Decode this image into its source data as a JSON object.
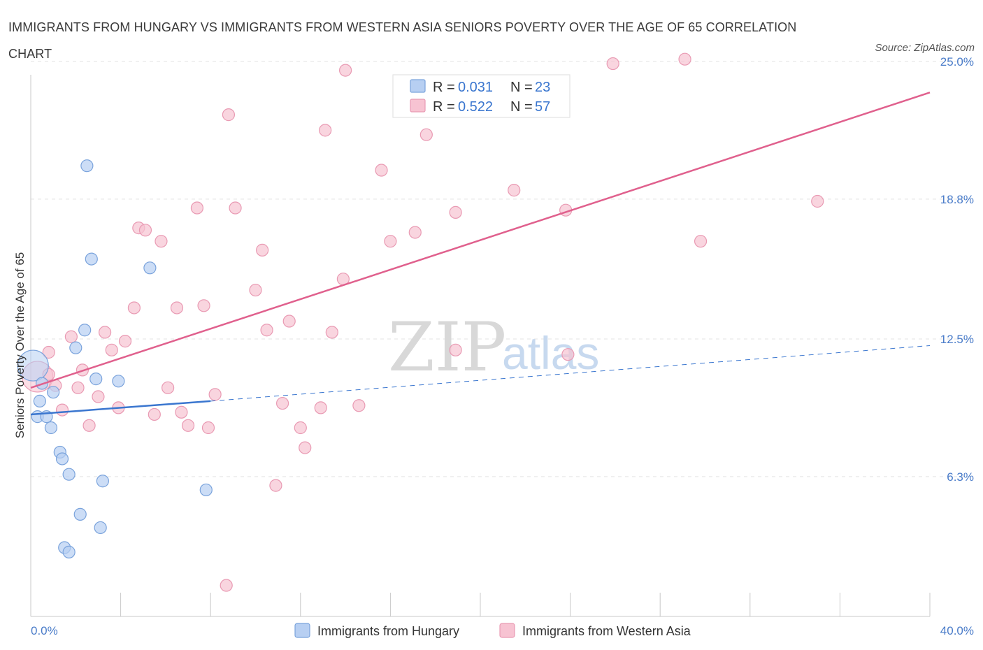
{
  "title": "IMMIGRANTS FROM HUNGARY VS IMMIGRANTS FROM WESTERN ASIA SENIORS POVERTY OVER THE AGE OF 65 CORRELATION CHART",
  "source": "Source: ZipAtlas.com",
  "watermark": {
    "zip": "ZIP",
    "atlas": "atlas"
  },
  "colors": {
    "blue_fill": "#b7cff2",
    "blue_stroke": "#7aa3dc",
    "blue_line": "#3a76cf",
    "pink_fill": "#f7c3d2",
    "pink_stroke": "#e99ab3",
    "pink_line": "#e0608d",
    "tick_text": "#4a7cc9",
    "grid": "#e3e3e3"
  },
  "legend_top": [
    {
      "r_label": "R = ",
      "r_value": "0.031",
      "n_label": "N = ",
      "n_value": "23"
    },
    {
      "r_label": "R = ",
      "r_value": "0.522",
      "n_label": "N = ",
      "n_value": "57"
    }
  ],
  "chart_data": {
    "type": "scatter",
    "title": "IMMIGRANTS FROM HUNGARY VS IMMIGRANTS FROM WESTERN ASIA SENIORS POVERTY OVER THE AGE OF 65 CORRELATION CHART",
    "xlabel": "",
    "ylabel": "Seniors Poverty Over the Age of 65",
    "xlim": [
      0,
      40
    ],
    "ylim": [
      0,
      25.5
    ],
    "x_tick_labels": [
      "0.0%",
      "40.0%"
    ],
    "y_ticks": [
      6.3,
      12.5,
      18.8,
      25.0
    ],
    "y_tick_labels": [
      "6.3%",
      "12.5%",
      "18.8%",
      "25.0%"
    ],
    "grid": true,
    "legend_position": "bottom",
    "series": [
      {
        "name": "Immigrants from Hungary",
        "color": "#b7cff2",
        "r": 0.031,
        "n": 23,
        "trend": {
          "x": [
            0,
            8.0
          ],
          "y": [
            9.1,
            9.7
          ]
        },
        "trend_extension": {
          "x": [
            8.0,
            40
          ],
          "y": [
            9.7,
            12.2
          ]
        },
        "points": [
          {
            "x": 0.1,
            "y": 11.3,
            "big": true
          },
          {
            "x": 0.3,
            "y": 9.0
          },
          {
            "x": 0.4,
            "y": 9.7
          },
          {
            "x": 0.5,
            "y": 10.5
          },
          {
            "x": 0.7,
            "y": 9.0
          },
          {
            "x": 0.9,
            "y": 8.5
          },
          {
            "x": 1.0,
            "y": 10.1
          },
          {
            "x": 1.3,
            "y": 7.4
          },
          {
            "x": 1.4,
            "y": 7.1
          },
          {
            "x": 1.7,
            "y": 6.4
          },
          {
            "x": 2.0,
            "y": 12.1
          },
          {
            "x": 2.2,
            "y": 4.6
          },
          {
            "x": 2.4,
            "y": 12.9
          },
          {
            "x": 2.5,
            "y": 20.3
          },
          {
            "x": 2.7,
            "y": 16.1
          },
          {
            "x": 2.9,
            "y": 10.7
          },
          {
            "x": 3.1,
            "y": 4.0
          },
          {
            "x": 3.2,
            "y": 6.1
          },
          {
            "x": 3.9,
            "y": 10.6
          },
          {
            "x": 5.3,
            "y": 15.7
          },
          {
            "x": 7.8,
            "y": 5.7
          },
          {
            "x": 1.5,
            "y": 3.1
          },
          {
            "x": 1.7,
            "y": 2.9
          }
        ]
      },
      {
        "name": "Immigrants from Western Asia",
        "color": "#f7c3d2",
        "r": 0.522,
        "n": 57,
        "trend": {
          "x": [
            0,
            40
          ],
          "y": [
            10.3,
            23.6
          ]
        },
        "points": [
          {
            "x": 0.3,
            "y": 10.8,
            "big": true
          },
          {
            "x": 0.8,
            "y": 10.9
          },
          {
            "x": 0.8,
            "y": 11.9
          },
          {
            "x": 1.1,
            "y": 10.4
          },
          {
            "x": 1.4,
            "y": 9.3
          },
          {
            "x": 1.8,
            "y": 12.6
          },
          {
            "x": 2.1,
            "y": 10.3
          },
          {
            "x": 2.3,
            "y": 11.1
          },
          {
            "x": 2.6,
            "y": 8.6
          },
          {
            "x": 3.0,
            "y": 9.9
          },
          {
            "x": 3.3,
            "y": 12.8
          },
          {
            "x": 3.6,
            "y": 12.0
          },
          {
            "x": 3.9,
            "y": 9.4
          },
          {
            "x": 4.2,
            "y": 12.4
          },
          {
            "x": 4.6,
            "y": 13.9
          },
          {
            "x": 4.8,
            "y": 17.5
          },
          {
            "x": 5.1,
            "y": 17.4
          },
          {
            "x": 5.5,
            "y": 9.1
          },
          {
            "x": 5.8,
            "y": 16.9
          },
          {
            "x": 6.1,
            "y": 10.3
          },
          {
            "x": 6.5,
            "y": 13.9
          },
          {
            "x": 6.7,
            "y": 9.2
          },
          {
            "x": 7.0,
            "y": 8.6
          },
          {
            "x": 7.4,
            "y": 18.4
          },
          {
            "x": 7.7,
            "y": 14.0
          },
          {
            "x": 7.9,
            "y": 8.5
          },
          {
            "x": 8.2,
            "y": 10.0
          },
          {
            "x": 8.8,
            "y": 22.6
          },
          {
            "x": 9.1,
            "y": 18.4
          },
          {
            "x": 10.0,
            "y": 14.7
          },
          {
            "x": 10.3,
            "y": 16.5
          },
          {
            "x": 10.5,
            "y": 12.9
          },
          {
            "x": 10.9,
            "y": 5.9
          },
          {
            "x": 11.2,
            "y": 9.6
          },
          {
            "x": 11.5,
            "y": 13.3
          },
          {
            "x": 12.0,
            "y": 8.5
          },
          {
            "x": 12.2,
            "y": 7.6
          },
          {
            "x": 12.9,
            "y": 9.4
          },
          {
            "x": 13.1,
            "y": 21.9
          },
          {
            "x": 13.4,
            "y": 12.8
          },
          {
            "x": 13.9,
            "y": 15.2
          },
          {
            "x": 14.0,
            "y": 24.6
          },
          {
            "x": 14.6,
            "y": 9.5
          },
          {
            "x": 15.6,
            "y": 20.1
          },
          {
            "x": 16.0,
            "y": 16.9
          },
          {
            "x": 17.1,
            "y": 17.3
          },
          {
            "x": 17.6,
            "y": 21.7
          },
          {
            "x": 18.9,
            "y": 18.2
          },
          {
            "x": 18.9,
            "y": 12.0
          },
          {
            "x": 21.5,
            "y": 19.2
          },
          {
            "x": 23.8,
            "y": 18.3
          },
          {
            "x": 23.9,
            "y": 11.8
          },
          {
            "x": 25.9,
            "y": 24.9
          },
          {
            "x": 29.1,
            "y": 25.1
          },
          {
            "x": 29.8,
            "y": 16.9
          },
          {
            "x": 35.0,
            "y": 18.7
          },
          {
            "x": 8.7,
            "y": 1.4
          }
        ]
      }
    ]
  }
}
